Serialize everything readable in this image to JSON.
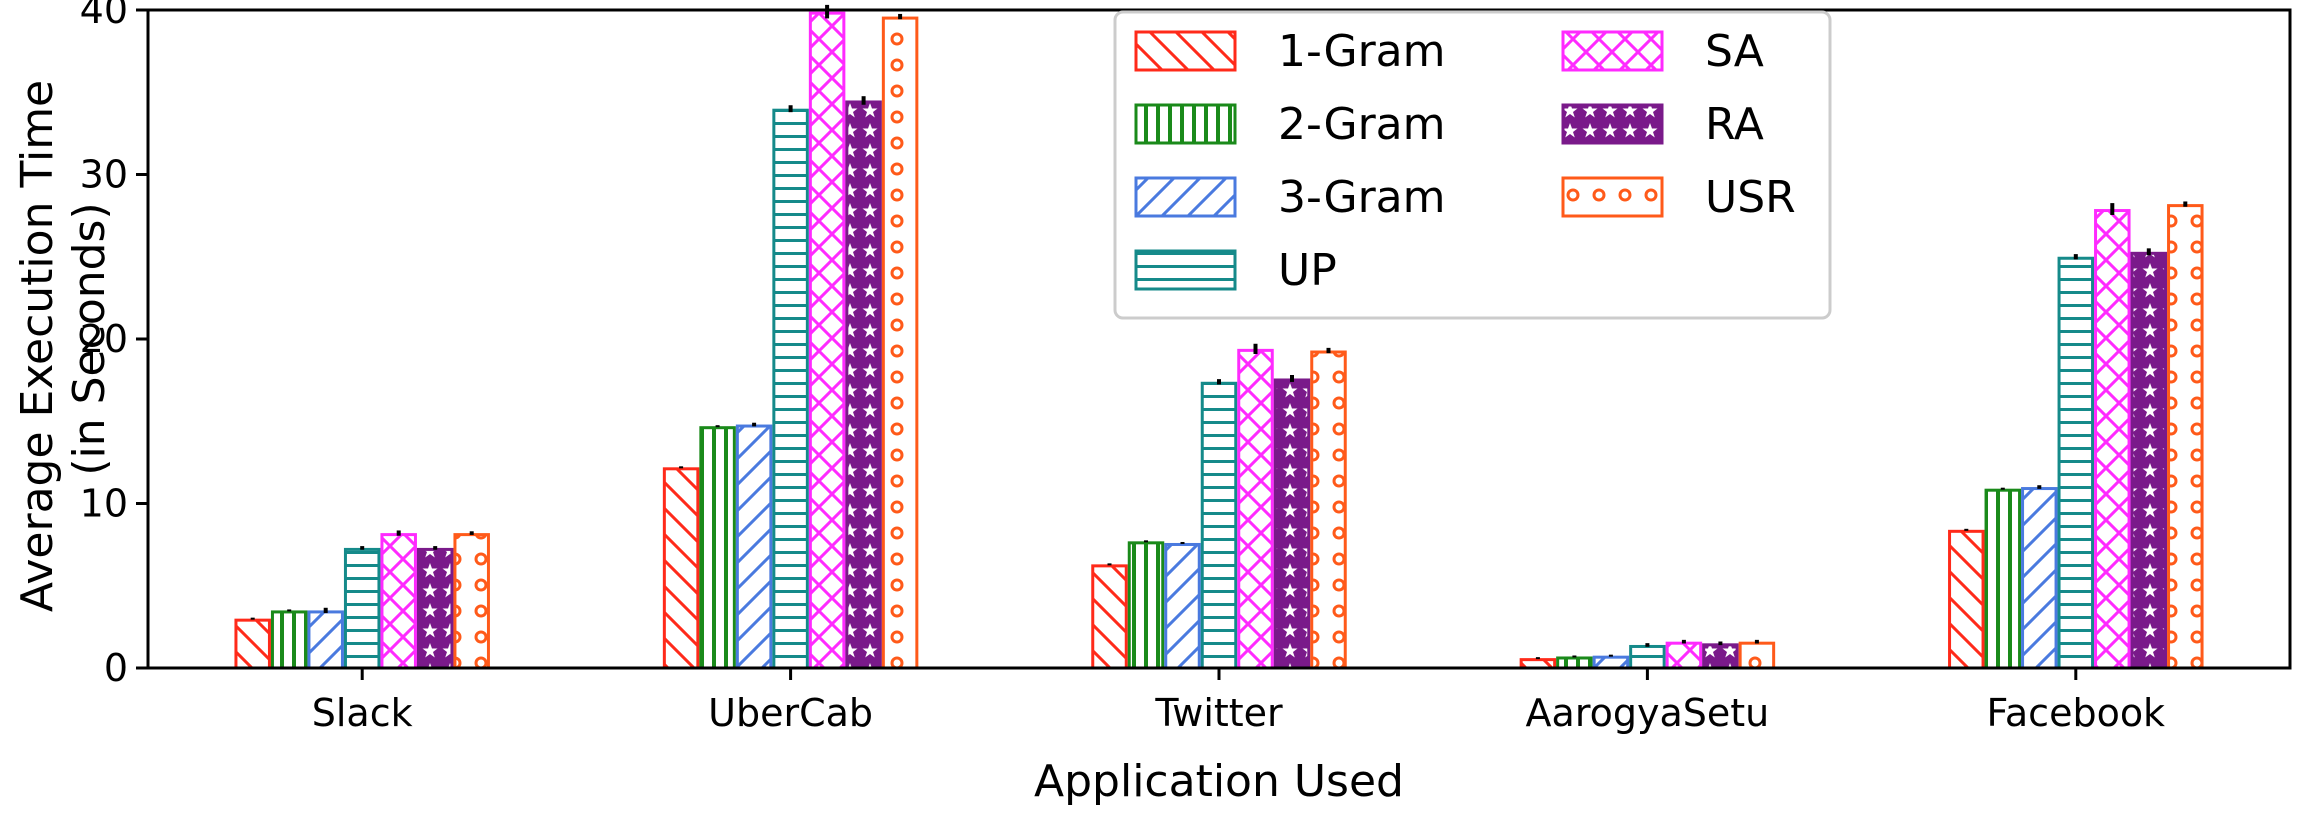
{
  "chart_data": {
    "type": "bar",
    "title": "",
    "xlabel": "Application Used",
    "ylabel_lines": [
      "Average Execution Time",
      "(in Seconds)"
    ],
    "ylim": [
      0,
      40
    ],
    "yticks": [
      0,
      10,
      20,
      30,
      40
    ],
    "categories": [
      "Slack",
      "UberCab",
      "Twitter",
      "AarogyaSetu",
      "Facebook"
    ],
    "legend_position": "top-center",
    "grid": false,
    "series": [
      {
        "name": "1-Gram",
        "color": "#ff2a1a",
        "pattern": "diag-back",
        "values": [
          3.0,
          12.2,
          6.3,
          0.6,
          8.4
        ],
        "errors": [
          0,
          0,
          0,
          0,
          0
        ]
      },
      {
        "name": "2-Gram",
        "color": "#1a8a1a",
        "pattern": "vertical",
        "values": [
          3.5,
          14.7,
          7.7,
          0.7,
          10.9
        ],
        "errors": [
          0,
          0,
          0,
          0,
          0
        ]
      },
      {
        "name": "3-Gram",
        "color": "#4a7adf",
        "pattern": "diag-fwd",
        "values": [
          3.5,
          14.8,
          7.6,
          0.75,
          11.0
        ],
        "errors": [
          0.1,
          0.05,
          0,
          0,
          0.05
        ]
      },
      {
        "name": "UP",
        "color": "#158a8a",
        "pattern": "horizontal",
        "values": [
          7.3,
          34.0,
          17.4,
          1.4,
          25.0
        ],
        "errors": [
          0.05,
          0.15,
          0.1,
          0.05,
          0.1
        ]
      },
      {
        "name": "SA",
        "color": "#ff2aff",
        "pattern": "cross",
        "values": [
          8.2,
          39.9,
          19.4,
          1.6,
          27.9
        ],
        "errors": [
          0.1,
          0.35,
          0.25,
          0.05,
          0.3
        ]
      },
      {
        "name": "RA",
        "color": "#7a1a8a",
        "pattern": "stars",
        "values": [
          7.3,
          34.5,
          17.6,
          1.5,
          25.3
        ],
        "errors": [
          0.05,
          0.2,
          0.15,
          0.05,
          0.15
        ]
      },
      {
        "name": "USR",
        "color": "#ff5a1a",
        "pattern": "circles",
        "values": [
          8.2,
          39.6,
          19.3,
          1.6,
          28.2
        ],
        "errors": [
          0.05,
          0.1,
          0.1,
          0.05,
          0.1
        ]
      }
    ]
  }
}
